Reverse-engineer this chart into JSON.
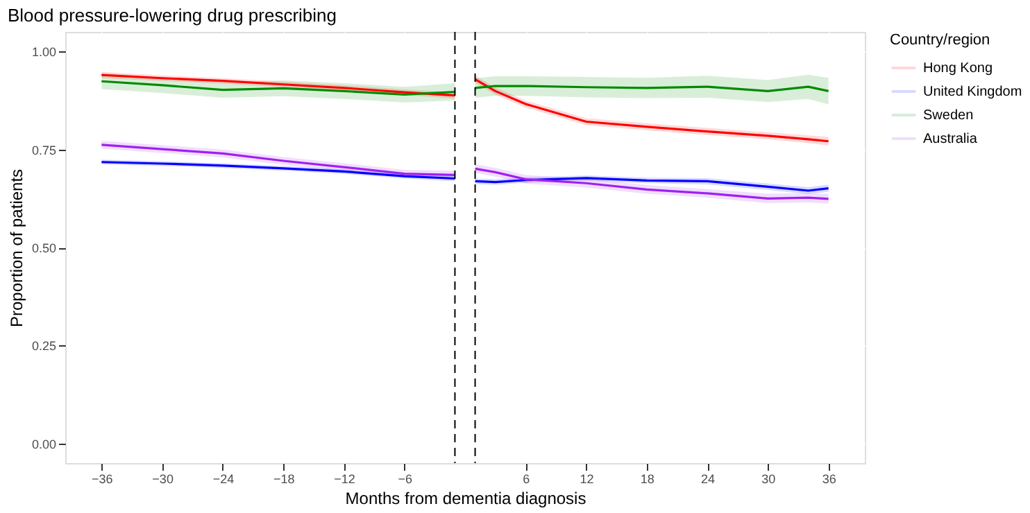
{
  "chart_data": {
    "type": "line",
    "title": "Blood pressure-lowering drug prescribing",
    "xlabel": "Months from dementia diagnosis",
    "ylabel": "Proportion of patients",
    "legend_title": "Country/region",
    "x": [
      -36,
      -30,
      -24,
      -18,
      -12,
      -6,
      -1,
      0,
      1,
      3,
      6,
      12,
      18,
      24,
      30,
      34,
      36
    ],
    "series": [
      {
        "name": "Hong Kong",
        "color": "#ff0000",
        "values": [
          0.94,
          0.932,
          0.925,
          0.916,
          0.907,
          0.896,
          0.888,
          null,
          0.929,
          0.899,
          0.866,
          0.821,
          0.808,
          0.796,
          0.785,
          0.776,
          0.771
        ],
        "lower": [
          0.932,
          0.925,
          0.918,
          0.909,
          0.9,
          0.889,
          0.88,
          null,
          0.92,
          0.89,
          0.857,
          0.812,
          0.799,
          0.787,
          0.776,
          0.766,
          0.76
        ],
        "upper": [
          0.948,
          0.939,
          0.932,
          0.923,
          0.914,
          0.903,
          0.896,
          null,
          0.938,
          0.908,
          0.875,
          0.83,
          0.817,
          0.805,
          0.794,
          0.786,
          0.782
        ]
      },
      {
        "name": "United Kingdom",
        "color": "#0000ff",
        "values": [
          0.718,
          0.714,
          0.709,
          0.702,
          0.694,
          0.682,
          0.676,
          null,
          0.669,
          0.667,
          0.672,
          0.677,
          0.671,
          0.669,
          0.655,
          0.645,
          0.651
        ],
        "lower": [
          0.712,
          0.708,
          0.703,
          0.696,
          0.688,
          0.676,
          0.669,
          null,
          0.662,
          0.66,
          0.665,
          0.67,
          0.664,
          0.661,
          0.647,
          0.636,
          0.642
        ],
        "upper": [
          0.724,
          0.72,
          0.715,
          0.708,
          0.7,
          0.688,
          0.683,
          null,
          0.676,
          0.674,
          0.679,
          0.684,
          0.678,
          0.677,
          0.663,
          0.654,
          0.66
        ]
      },
      {
        "name": "Sweden",
        "color": "#008b00",
        "values": [
          0.924,
          0.914,
          0.902,
          0.906,
          0.899,
          0.89,
          0.897,
          null,
          0.907,
          0.912,
          0.912,
          0.909,
          0.907,
          0.91,
          0.899,
          0.91,
          0.899
        ],
        "lower": [
          0.904,
          0.894,
          0.882,
          0.886,
          0.879,
          0.87,
          0.875,
          null,
          0.882,
          0.887,
          0.887,
          0.883,
          0.881,
          0.882,
          0.871,
          0.879,
          0.865
        ],
        "upper": [
          0.944,
          0.934,
          0.922,
          0.926,
          0.919,
          0.91,
          0.919,
          null,
          0.932,
          0.937,
          0.937,
          0.935,
          0.933,
          0.938,
          0.927,
          0.941,
          0.933
        ]
      },
      {
        "name": "Australia",
        "color": "#a020f0",
        "values": [
          0.762,
          0.751,
          0.74,
          0.721,
          0.705,
          0.688,
          0.685,
          null,
          0.701,
          0.692,
          0.674,
          0.664,
          0.648,
          0.638,
          0.625,
          0.627,
          0.624
        ],
        "lower": [
          0.752,
          0.741,
          0.73,
          0.711,
          0.695,
          0.678,
          0.674,
          null,
          0.69,
          0.681,
          0.663,
          0.653,
          0.637,
          0.627,
          0.613,
          0.615,
          0.612
        ],
        "upper": [
          0.772,
          0.761,
          0.75,
          0.731,
          0.715,
          0.698,
          0.696,
          null,
          0.712,
          0.703,
          0.685,
          0.675,
          0.659,
          0.649,
          0.637,
          0.639,
          0.636
        ]
      }
    ],
    "xlim": [
      -39.6,
      39.6
    ],
    "xticks": [
      -36,
      -30,
      -24,
      -18,
      -12,
      -6,
      6,
      12,
      18,
      24,
      30,
      36
    ],
    "ylim": [
      -0.05,
      1.05
    ],
    "yticks": [
      {
        "value": 0,
        "label": "0.00"
      },
      {
        "value": 0.25,
        "label": "0.25"
      },
      {
        "value": 0.5,
        "label": "0.50"
      },
      {
        "value": 0.75,
        "label": "0.75"
      },
      {
        "value": 1,
        "label": "1.00"
      }
    ],
    "ref_lines": [
      {
        "axis": "x",
        "value": -1,
        "color": "#000000",
        "line_style": "dashed"
      },
      {
        "axis": "x",
        "value": 1,
        "color": "#000000",
        "line_style": "dashed"
      }
    ],
    "grid": true,
    "legend": "right",
    "line_style": "solid",
    "marker": "none"
  }
}
